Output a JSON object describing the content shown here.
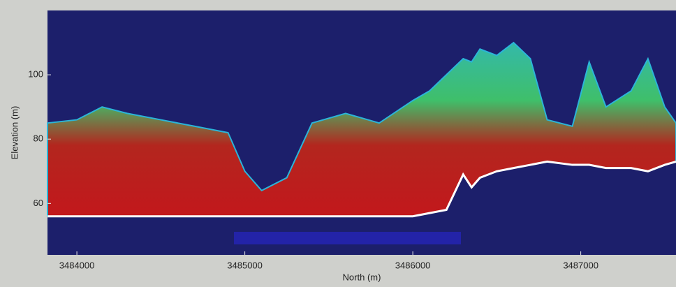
{
  "chart_data": {
    "type": "line",
    "xlabel": "North (m)",
    "ylabel": "Elevation (m)",
    "x": [
      3483825,
      3484000,
      3484150,
      3484300,
      3484500,
      3484700,
      3484900,
      3485000,
      3485100,
      3485250,
      3485400,
      3485600,
      3485800,
      3486000,
      3486100,
      3486200,
      3486300,
      3486350,
      3486400,
      3486500,
      3486600,
      3486700,
      3486800,
      3486950,
      3487050,
      3487150,
      3487300,
      3487400,
      3487500,
      3487567
    ],
    "series": [
      {
        "color": "#2bb5d8",
        "values": [
          85,
          86,
          90,
          88,
          86,
          84,
          82,
          70,
          64,
          68,
          85,
          88,
          85,
          92,
          95,
          100,
          105,
          104,
          108,
          106,
          110,
          105,
          86,
          84,
          104,
          90,
          95,
          105,
          90,
          85
        ]
      },
      {
        "color": "#ffffff",
        "values": [
          56,
          56,
          56,
          56,
          56,
          56,
          56,
          56,
          56,
          56,
          56,
          56,
          56,
          56,
          57,
          58,
          69,
          65,
          68,
          70,
          71,
          72,
          73,
          72,
          72,
          71,
          71,
          70,
          72,
          73
        ]
      }
    ],
    "xlim": [
      3483825,
      3487567
    ],
    "ylim": [
      44,
      120
    ],
    "xticks": [
      3484000,
      3485000,
      3486000,
      3487000
    ],
    "yticks": [
      60,
      80,
      100
    ]
  }
}
